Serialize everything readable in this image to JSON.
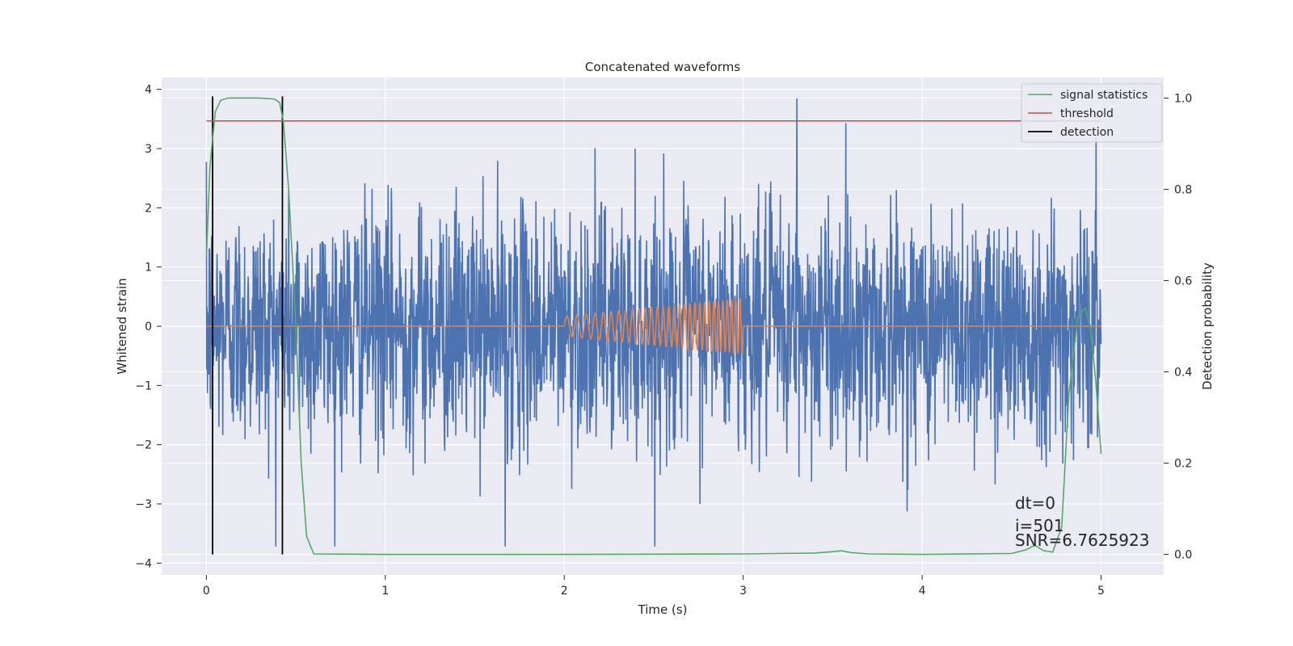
{
  "chart_data": {
    "type": "line",
    "title": "Concatenated waveforms",
    "xlabel": "Time (s)",
    "ylabel": "Whitened strain",
    "y2label": "Detection probability",
    "xlim": [
      -0.25,
      5.35
    ],
    "ylim": [
      -4.2,
      4.2
    ],
    "y2lim": [
      -0.045,
      1.045
    ],
    "xticks": [
      0,
      1,
      2,
      3,
      4,
      5
    ],
    "yticks": [
      -4,
      -3,
      -2,
      -1,
      0,
      1,
      2,
      3,
      4
    ],
    "y2ticks": [
      0.0,
      0.2,
      0.4,
      0.6,
      0.8,
      1.0
    ],
    "xtick_labels": [
      "0",
      "1",
      "2",
      "3",
      "4",
      "5"
    ],
    "ytick_labels": [
      "−4",
      "−3",
      "−2",
      "−1",
      "0",
      "1",
      "2",
      "3",
      "4"
    ],
    "y2tick_labels": [
      "0.0",
      "0.2",
      "0.4",
      "0.6",
      "0.8",
      "1.0"
    ],
    "grid": true,
    "legend_position": "top-right",
    "colors": {
      "strain": "#4c72b0",
      "waveform": "#dd8452",
      "signal_statistics": "#55a868",
      "threshold": "#c44e52",
      "detection": "#000000",
      "background": "#eaeaf2"
    },
    "series": [
      {
        "name": "signal statistics",
        "axis": "right",
        "x": [
          0.0,
          0.02,
          0.05,
          0.08,
          0.12,
          0.2,
          0.3,
          0.38,
          0.41,
          0.43,
          0.46,
          0.5,
          0.53,
          0.56,
          0.6,
          1.0,
          2.0,
          3.0,
          3.4,
          3.5,
          3.55,
          3.6,
          3.7,
          4.0,
          4.5,
          4.58,
          4.63,
          4.68,
          4.73,
          4.78,
          4.82,
          4.87,
          4.91,
          4.94,
          4.97,
          5.0
        ],
        "y": [
          0.65,
          0.85,
          0.97,
          0.995,
          1.0,
          1.0,
          1.0,
          0.998,
          0.99,
          0.95,
          0.8,
          0.5,
          0.2,
          0.04,
          0.001,
          0.0,
          0.0,
          0.001,
          0.003,
          0.006,
          0.008,
          0.004,
          0.001,
          0.0,
          0.002,
          0.01,
          0.02,
          0.008,
          0.005,
          0.06,
          0.35,
          0.52,
          0.54,
          0.5,
          0.38,
          0.22
        ]
      },
      {
        "name": "threshold",
        "axis": "right",
        "x": [
          0.0,
          5.0
        ],
        "y": [
          0.95,
          0.95
        ]
      },
      {
        "name": "detection",
        "axis": "right",
        "x": [
          0.035,
          0.425
        ],
        "y": [
          0.0,
          1.0
        ]
      }
    ],
    "strain_noise": {
      "x_range": [
        0.0,
        5.0
      ],
      "typical_amplitude": 1.0,
      "max": 3.85,
      "min": -3.72,
      "spike_max_at": 3.3,
      "spike_min_at": 1.67
    },
    "waveform": {
      "x_range": [
        2.0,
        3.0
      ],
      "y_zero_outside": 0.0,
      "amplitude_start": 0.17,
      "amplitude_end": 0.47,
      "cycles": 30
    },
    "annotations": [
      "dt=0",
      "i=501",
      "SNR=6.7625923"
    ],
    "annotation_x": 4.5
  }
}
